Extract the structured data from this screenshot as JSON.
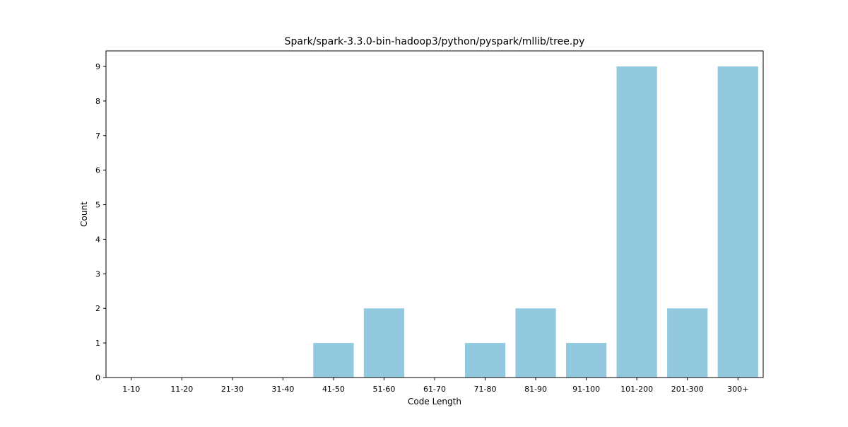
{
  "chart_data": {
    "type": "bar",
    "title": "Spark/spark-3.3.0-bin-hadoop3/python/pyspark/mllib/tree.py",
    "xlabel": "Code Length",
    "ylabel": "Count",
    "categories": [
      "1-10",
      "11-20",
      "21-30",
      "31-40",
      "41-50",
      "51-60",
      "61-70",
      "71-80",
      "81-90",
      "91-100",
      "101-200",
      "201-300",
      "300+"
    ],
    "values": [
      0,
      0,
      0,
      0,
      1,
      2,
      0,
      1,
      2,
      1,
      9,
      2,
      9
    ],
    "ylim": [
      0,
      9.45
    ],
    "yticks": [
      0,
      1,
      2,
      3,
      4,
      5,
      6,
      7,
      8,
      9
    ],
    "grid": false,
    "bar_color": "#92c9df"
  }
}
